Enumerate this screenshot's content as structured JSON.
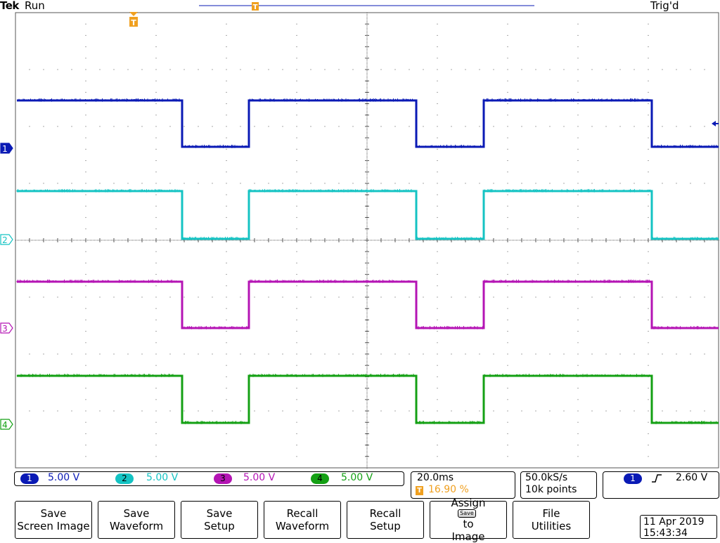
{
  "header": {
    "brand": "Tek",
    "run_state": "Run",
    "trigger_state": "Trig'd",
    "trigger_marker": "T"
  },
  "colors": {
    "ch1": "#0a1ab5",
    "ch2": "#14c3c3",
    "ch3": "#b414b4",
    "ch4": "#14a014",
    "trigger": "#f0a020",
    "graticule": "#555555"
  },
  "channels": [
    {
      "number": "1",
      "scale": "5.00 V",
      "marker": "1"
    },
    {
      "number": "2",
      "scale": "5.00 V",
      "marker": "2"
    },
    {
      "number": "3",
      "scale": "5.00 V",
      "marker": "3"
    },
    {
      "number": "4",
      "scale": "5.00 V",
      "marker": "4"
    }
  ],
  "timebase": {
    "scale": "20.0ms",
    "trigger_position": "16.90 %",
    "trigger_icon": "T"
  },
  "acquisition": {
    "sample_rate": "50.0kS/s",
    "record_length": "10k points"
  },
  "trigger": {
    "source": "1",
    "slope_icon": "rising-edge-icon",
    "level": "2.60 V"
  },
  "softkeys": [
    {
      "line1": "Save",
      "line2": "Screen Image"
    },
    {
      "line1": "Save",
      "line2": "Waveform"
    },
    {
      "line1": "Save",
      "line2": "Setup"
    },
    {
      "line1": "Recall",
      "line2": "Waveform"
    },
    {
      "line1": "Recall",
      "line2": "Setup"
    },
    {
      "line1": "Assign",
      "save_glyph": "Save",
      "line2": "to",
      "line3": "Image"
    },
    {
      "line1": "File",
      "line2": "Utilities"
    }
  ],
  "datetime": {
    "date": "11 Apr 2019",
    "time": "15:43:34"
  },
  "chart_data": {
    "type": "line",
    "x_divisions": 10,
    "y_divisions": 8,
    "series": [
      {
        "name": "1",
        "color": "#0a1ab5",
        "high_level": 1,
        "low_level": 0,
        "edges_div": [
          2.37,
          3.32,
          5.7,
          6.66,
          9.05
        ]
      },
      {
        "name": "2",
        "color": "#14c3c3",
        "high_level": 1,
        "low_level": 0,
        "edges_div": [
          2.37,
          3.32,
          5.7,
          6.66,
          9.05
        ]
      },
      {
        "name": "3",
        "color": "#b414b4",
        "high_level": 1,
        "low_level": 0,
        "edges_div": [
          2.37,
          3.32,
          5.7,
          6.66,
          9.05
        ]
      },
      {
        "name": "4",
        "color": "#14a014",
        "high_level": 1,
        "low_level": 0,
        "edges_div": [
          2.37,
          3.32,
          5.7,
          6.66,
          9.05
        ]
      }
    ]
  }
}
